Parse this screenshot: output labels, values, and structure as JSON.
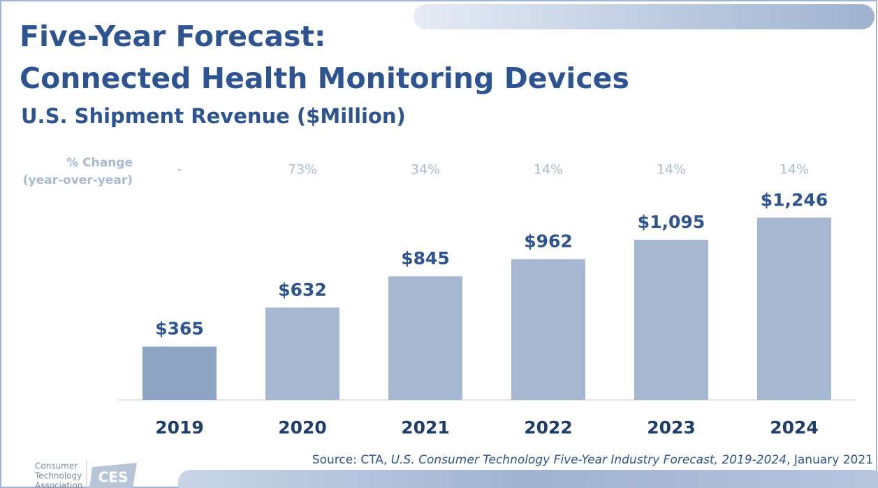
{
  "chart_data": {
    "type": "bar",
    "title": [
      "Five-Year Forecast:",
      "Connected Health Monitoring Devices"
    ],
    "subtitle": "U.S. Shipment Revenue ($Million)",
    "categories": [
      "2019",
      "2020",
      "2021",
      "2022",
      "2023",
      "2024"
    ],
    "values": [
      365,
      632,
      845,
      962,
      1095,
      1246
    ],
    "value_labels": [
      "$365",
      "$632",
      "$845",
      "$962",
      "$1,095",
      "$1,246"
    ],
    "colors": [
      "#8da4c4",
      "#a6b7d1",
      "#a6b7d1",
      "#a6b7d1",
      "#a6b7d1",
      "#a6b7d1"
    ],
    "ylim": [
      0,
      1300
    ],
    "change_header": [
      "% Change",
      "(year-over-year)"
    ],
    "change_labels": [
      "-",
      "73%",
      "34%",
      "14%",
      "14%",
      "14%"
    ],
    "source": [
      "Source: CTA, ",
      "U.S. Consumer Technology Five-Year Industry Forecast, 2019-2024",
      ", January 2021"
    ],
    "logo": {
      "org": [
        "Consumer",
        "Technology",
        "Association"
      ],
      "brand": "CES"
    }
  }
}
